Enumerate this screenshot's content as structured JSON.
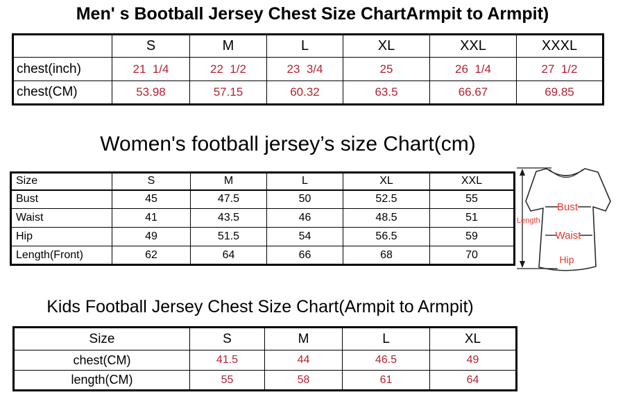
{
  "colors": {
    "table_value_red": "#b22235",
    "diagram_red": "#e8352b",
    "line_black": "#000000"
  },
  "mens": {
    "title": "Men' s Bootball Jersey Chest Size ChartArmpit to Armpit)",
    "columns": [
      "",
      "S",
      "M",
      "L",
      "XL",
      "XXL",
      "XXXL"
    ],
    "rows": [
      {
        "label": "chest(inch)",
        "values": [
          "21  1/4",
          "22  1/2",
          "23  3/4",
          "25",
          "26  1/4",
          "27  1/2"
        ]
      },
      {
        "label": "chest(CM)",
        "values": [
          "53.98",
          "57.15",
          "60.32",
          "63.5",
          "66.67",
          "69.85"
        ]
      }
    ]
  },
  "womens": {
    "title": "Women's football jersey’s size Chart(cm)",
    "columns": [
      "Size",
      "S",
      "M",
      "L",
      "XL",
      "XXL"
    ],
    "rows": [
      {
        "label": "Bust",
        "values": [
          "45",
          "47.5",
          "50",
          "52.5",
          "55"
        ]
      },
      {
        "label": "Waist",
        "values": [
          "41",
          "43.5",
          "46",
          "48.5",
          "51"
        ]
      },
      {
        "label": "Hip",
        "values": [
          "49",
          "51.5",
          "54",
          "56.5",
          "59"
        ]
      },
      {
        "label": "Length(Front)",
        "values": [
          "62",
          "64",
          "66",
          "68",
          "70"
        ]
      }
    ]
  },
  "kids": {
    "title": "Kids Football Jersey Chest Size Chart(Armpit to Armpit)",
    "columns": [
      "Size",
      "S",
      "M",
      "L",
      "XL"
    ],
    "rows": [
      {
        "label": "chest(CM)",
        "values": [
          "41.5",
          "44",
          "46.5",
          "49"
        ]
      },
      {
        "label": "length(CM)",
        "values": [
          "55",
          "58",
          "61",
          "64"
        ]
      }
    ]
  },
  "diagram": {
    "length_label": "Length",
    "bust_label": "Bust",
    "waist_label": "Waist",
    "hip_label": "Hip"
  }
}
